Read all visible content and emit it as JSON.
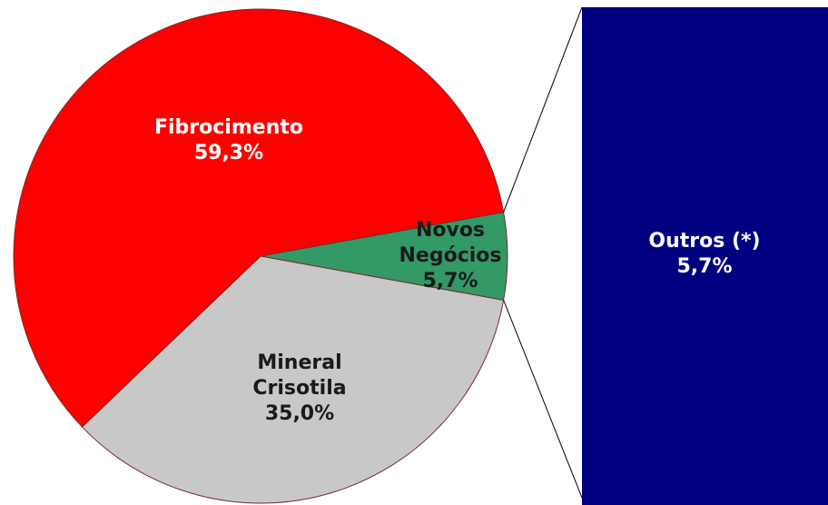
{
  "chart_data": {
    "type": "pie-of-bar",
    "categories": [
      "Fibrocimento",
      "Mineral Crisotila",
      "Novos Negócios"
    ],
    "values": [
      59.3,
      35.0,
      5.7
    ],
    "value_labels": [
      "59,3%",
      "35,0%",
      "5,7%"
    ],
    "colors": [
      "#ff0000",
      "#c8c8c8",
      "#339966"
    ],
    "bar": {
      "categories": [
        "Outros (*)"
      ],
      "values": [
        5.7
      ],
      "value_labels": [
        "5,7%"
      ],
      "color": "#000080"
    }
  }
}
